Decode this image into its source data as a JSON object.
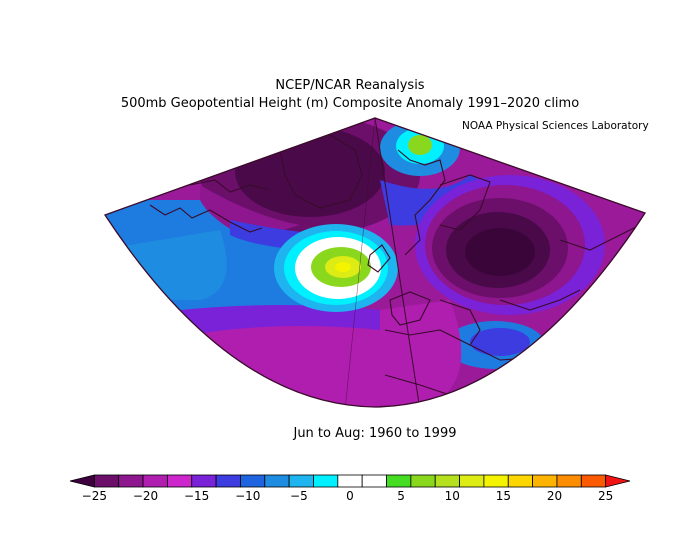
{
  "title_line1": "NCEP/NCAR Reanalysis",
  "title_line2": "500mb Geopotential Height (m) Composite Anomaly 1991–2020 climo",
  "credit": "NOAA Physical Sciences Laboratory",
  "period": "Jun to Aug: 1960 to 1999",
  "colorbar": {
    "ticks": [
      "−25",
      "−20",
      "−15",
      "−10",
      "−5",
      "0",
      "5",
      "10",
      "15",
      "20",
      "25"
    ],
    "colors": [
      "#3f0040",
      "#6b0f6b",
      "#8e168e",
      "#b01eb0",
      "#cc26cc",
      "#7a22d8",
      "#3d3ce0",
      "#1e64e0",
      "#1e8ce0",
      "#1eb4f0",
      "#00f0ff",
      "#ffffff",
      "#ffffff",
      "#44dd22",
      "#8ad81e",
      "#b4e01e",
      "#dcec14",
      "#f4f400",
      "#fcd600",
      "#fcb400",
      "#fc8c00",
      "#fc5a00",
      "#f01414"
    ]
  }
}
